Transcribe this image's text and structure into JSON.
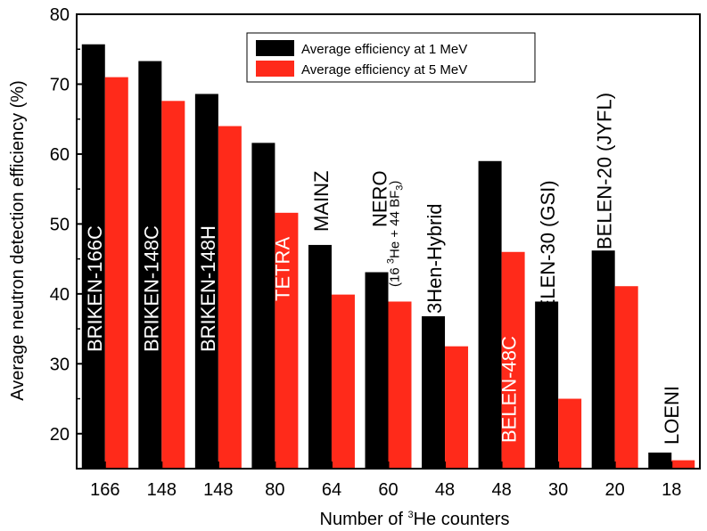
{
  "chart_data": {
    "type": "bar",
    "xlabel_prefix": "Number of ",
    "xlabel_sup": "3",
    "xlabel_suffix": "He counters",
    "ylabel": "Average neutron detection efficiency (%)",
    "ylim": [
      15,
      80
    ],
    "yticks": [
      20,
      30,
      40,
      50,
      60,
      70,
      80
    ],
    "categories": [
      "166",
      "148",
      "148",
      "80",
      "64",
      "60",
      "48",
      "48",
      "30",
      "20",
      "18"
    ],
    "series": [
      {
        "name": "Average efficiency at 1 MeV",
        "color": "#000000",
        "values": [
          75.7,
          73.3,
          68.6,
          61.6,
          47.0,
          43.1,
          36.8,
          59.0,
          38.9,
          46.2,
          17.3
        ]
      },
      {
        "name": "Average efficiency at 5 MeV",
        "color": "#ff2a1a",
        "values": [
          71.0,
          67.6,
          64.0,
          51.6,
          39.9,
          38.9,
          32.5,
          46.0,
          25.0,
          41.1,
          16.2
        ]
      }
    ],
    "bar_labels": [
      "BRIKEN-166C",
      "BRIKEN-148C",
      "BRIKEN-148H",
      "TETRA",
      "MAINZ",
      "NERO",
      "3Hen-Hybrid",
      "BELEN-48C",
      "BELEN-30 (GSI)",
      "BELEN-20 (JYFL)",
      "LOENI"
    ],
    "nero_sub": {
      "a": "(16 ",
      "sup1": "3",
      "b": "He + 44 BF",
      "sub": "3",
      "c": ")"
    },
    "legend_position": "top-center",
    "grid": false
  }
}
